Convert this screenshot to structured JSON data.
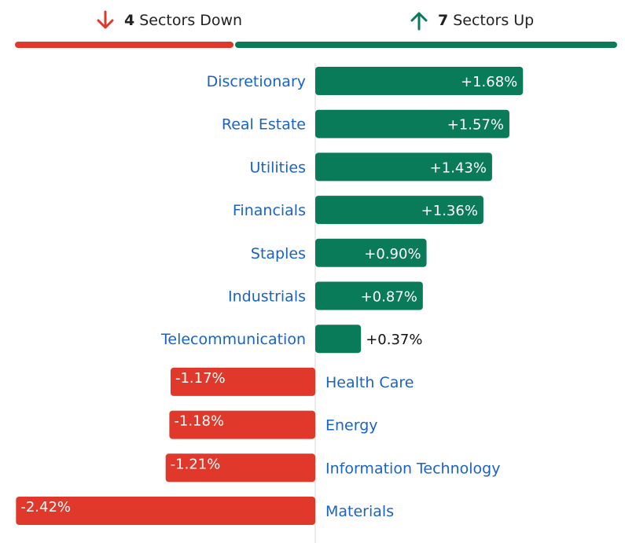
{
  "header": {
    "down_count": "4",
    "down_label": "Sectors Down",
    "up_count": "7",
    "up_label": "Sectors Up"
  },
  "colors": {
    "up": "#0a7b58",
    "down": "#e0392b",
    "label": "#1a63c6",
    "axis": "#d9d9d9"
  },
  "chart_data": {
    "type": "bar",
    "orientation": "horizontal",
    "categories": [
      "Discretionary",
      "Real Estate",
      "Utilities",
      "Financials",
      "Staples",
      "Industrials",
      "Telecommunication",
      "Health Care",
      "Energy",
      "Information Technology",
      "Materials"
    ],
    "values": [
      1.68,
      1.57,
      1.43,
      1.36,
      0.9,
      0.87,
      0.37,
      -1.17,
      -1.18,
      -1.21,
      -2.42
    ],
    "value_labels": [
      "+1.68%",
      "+1.57%",
      "+1.43%",
      "+1.36%",
      "+0.90%",
      "+0.87%",
      "+0.37%",
      "-1.17%",
      "-1.18%",
      "-1.21%",
      "-2.42%"
    ],
    "unit": "%",
    "title": "",
    "xlabel": "",
    "ylabel": ""
  }
}
